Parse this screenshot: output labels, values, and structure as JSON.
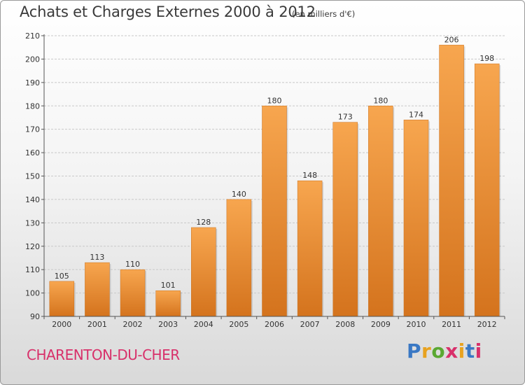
{
  "header": {
    "title": "Achats et Charges Externes 2000 à 2012",
    "unit": "(en milliers d'€)"
  },
  "footer": {
    "town": "CHARENTON-DU-CHER",
    "logo": "Proxiti",
    "logo_colors": [
      "#3a78c4",
      "#e8a21f",
      "#5aa832",
      "#d8306a",
      "#e8a21f",
      "#3a78c4",
      "#d8306a"
    ]
  },
  "colors": {
    "bar_light": "#f7a64f",
    "bar_dark": "#d4731d",
    "grid": "#c8c8c8",
    "axis": "#555555"
  },
  "chart_data": {
    "type": "bar",
    "title": "Achats et Charges Externes 2000 à 2012",
    "categories": [
      "2000",
      "2001",
      "2002",
      "2003",
      "2004",
      "2005",
      "2006",
      "2007",
      "2008",
      "2009",
      "2010",
      "2011",
      "2012"
    ],
    "values": [
      105,
      113,
      110,
      101,
      128,
      140,
      180,
      148,
      173,
      180,
      174,
      206,
      198
    ],
    "ylim": [
      90,
      210
    ],
    "yticks": [
      90,
      100,
      110,
      120,
      130,
      140,
      150,
      160,
      170,
      180,
      190,
      200,
      210
    ],
    "grid": true,
    "xlabel": "",
    "ylabel": ""
  }
}
